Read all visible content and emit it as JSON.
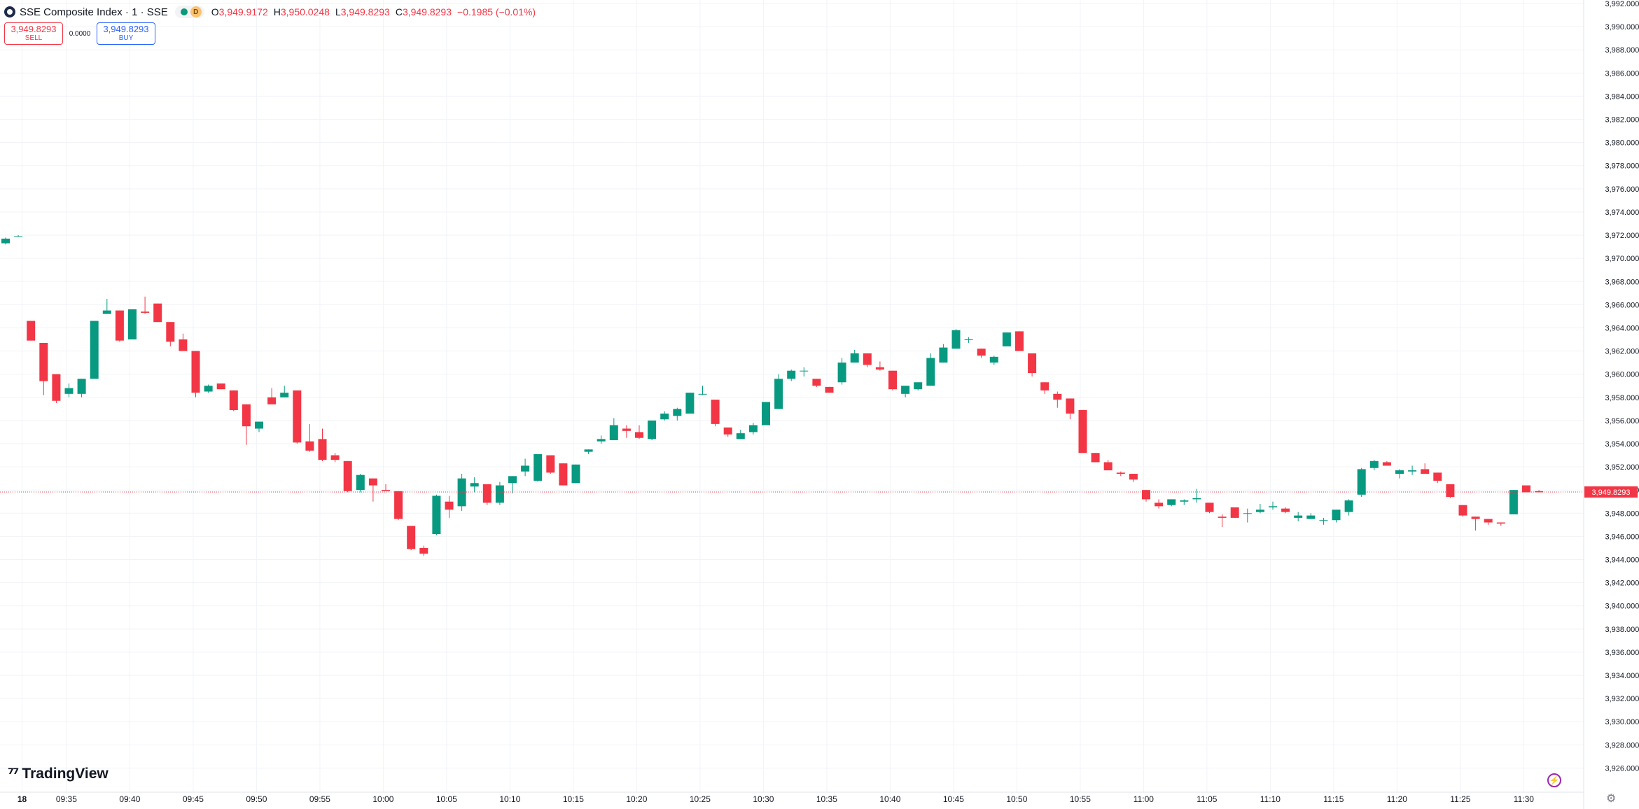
{
  "header": {
    "title": "SSE Composite Index · 1 · SSE",
    "interval_badge": "D",
    "open_key": "O",
    "open": "3,949.9172",
    "high_key": "H",
    "high": "3,950.0248",
    "low_key": "L",
    "low": "3,949.8293",
    "close_key": "C",
    "close": "3,949.8293",
    "change": "−0.1985 (−0.01%)"
  },
  "trade": {
    "sell_price": "3,949.8293",
    "sell_label": "SELL",
    "spread": "0.0000",
    "buy_price": "3,949.8293",
    "buy_label": "BUY"
  },
  "branding": {
    "logo_text": "TradingView"
  },
  "colors": {
    "up": "#089981",
    "down": "#f23645",
    "grid": "#f0f3fa",
    "axis_text": "#131722"
  },
  "icons": [
    "symbol-logo-icon",
    "market-open-icon",
    "tradingview-logo-icon",
    "bolt-icon",
    "gear-icon"
  ],
  "chart_data": {
    "type": "candlestick",
    "y_axis": {
      "min": 3925.0,
      "max": 3992.0,
      "position": "right",
      "ticks": [
        3926,
        3928,
        3930,
        3932,
        3934,
        3936,
        3938,
        3940,
        3942,
        3944,
        3946,
        3948,
        3950,
        3952,
        3954,
        3956,
        3958,
        3960,
        3962,
        3964,
        3966,
        3968,
        3970,
        3972,
        3974,
        3976,
        3978,
        3980,
        3982,
        3984,
        3986,
        3988,
        3990,
        3992
      ],
      "tick_labels": [
        "3,926.0000",
        "3,928.0000",
        "3,930.0000",
        "3,932.0000",
        "3,934.0000",
        "3,936.0000",
        "3,938.0000",
        "3,940.0000",
        "3,942.0000",
        "3,944.0000",
        "3,946.0000",
        "3,948.0000",
        "3,950.0000",
        "3,952.0000",
        "3,954.0000",
        "3,956.0000",
        "3,958.0000",
        "3,960.0000",
        "3,962.0000",
        "3,964.0000",
        "3,966.0000",
        "3,968.0000",
        "3,970.0000",
        "3,972.0000",
        "3,974.0000",
        "3,976.0000",
        "3,978.0000",
        "3,980.0000",
        "3,982.0000",
        "3,984.0000",
        "3,986.0000",
        "3,988.0000",
        "3,990.0000",
        "3,992.0000"
      ]
    },
    "x_axis": {
      "ticks": [
        "18",
        "09:35",
        "09:40",
        "09:45",
        "09:50",
        "09:55",
        "10:00",
        "10:05",
        "10:10",
        "10:15",
        "10:20",
        "10:25",
        "10:30",
        "10:35",
        "10:40",
        "10:45",
        "10:50",
        "10:55",
        "11:00",
        "11:05",
        "11:10",
        "11:15",
        "11:20",
        "11:25",
        "11:30"
      ]
    },
    "last_price": 3949.8293,
    "last_price_label": "3,949.8293",
    "grid": true,
    "candles": [
      [
        3971.3,
        3971.8,
        3971.2,
        3971.7
      ],
      [
        3971.9,
        3972.0,
        3971.9,
        3971.9
      ],
      [
        3964.6,
        3964.6,
        3962.9,
        3962.9
      ],
      [
        3962.7,
        3962.7,
        3958.2,
        3959.4
      ],
      [
        3960.0,
        3960.0,
        3957.5,
        3957.7
      ],
      [
        3958.3,
        3959.2,
        3958.0,
        3958.8
      ],
      [
        3958.3,
        3959.6,
        3958.0,
        3959.6
      ],
      [
        3959.6,
        3964.6,
        3959.6,
        3964.6
      ],
      [
        3965.2,
        3966.5,
        3965.2,
        3965.5
      ],
      [
        3965.5,
        3965.5,
        3962.8,
        3962.9
      ],
      [
        3963.0,
        3965.6,
        3963.0,
        3965.6
      ],
      [
        3965.4,
        3966.7,
        3965.2,
        3965.3
      ],
      [
        3966.1,
        3966.1,
        3964.5,
        3964.5
      ],
      [
        3964.5,
        3964.5,
        3962.4,
        3962.8
      ],
      [
        3963.0,
        3963.5,
        3962.0,
        3962.0
      ],
      [
        3962.0,
        3962.0,
        3958.0,
        3958.4
      ],
      [
        3958.5,
        3959.1,
        3958.4,
        3959.0
      ],
      [
        3959.2,
        3959.2,
        3958.7,
        3958.7
      ],
      [
        3958.6,
        3958.6,
        3956.8,
        3956.9
      ],
      [
        3957.4,
        3957.4,
        3953.9,
        3955.5
      ],
      [
        3955.3,
        3955.9,
        3955.0,
        3955.9
      ],
      [
        3958.0,
        3958.8,
        3957.6,
        3957.4
      ],
      [
        3958.0,
        3959.0,
        3958.0,
        3958.4
      ],
      [
        3958.6,
        3958.6,
        3954.0,
        3954.1
      ],
      [
        3954.2,
        3955.7,
        3953.3,
        3953.4
      ],
      [
        3954.4,
        3955.3,
        3952.5,
        3952.6
      ],
      [
        3953.0,
        3953.2,
        3952.4,
        3952.6
      ],
      [
        3952.5,
        3952.5,
        3949.8,
        3949.9
      ],
      [
        3950.0,
        3951.4,
        3949.8,
        3951.3
      ],
      [
        3951.0,
        3951.0,
        3949.0,
        3950.4
      ],
      [
        3950.0,
        3950.5,
        3950.0,
        3949.9
      ],
      [
        3949.9,
        3949.9,
        3947.4,
        3947.5
      ],
      [
        3946.9,
        3946.9,
        3944.8,
        3944.9
      ],
      [
        3945.0,
        3945.2,
        3944.3,
        3944.5
      ],
      [
        3946.2,
        3949.6,
        3946.1,
        3949.5
      ],
      [
        3949.0,
        3949.5,
        3947.6,
        3948.3
      ],
      [
        3948.6,
        3951.4,
        3948.2,
        3951.0
      ],
      [
        3950.3,
        3951.1,
        3949.8,
        3950.6
      ],
      [
        3950.5,
        3950.5,
        3948.7,
        3948.9
      ],
      [
        3948.9,
        3950.7,
        3948.7,
        3950.4
      ],
      [
        3950.6,
        3951.2,
        3949.7,
        3951.2
      ],
      [
        3951.6,
        3952.7,
        3951.2,
        3952.1
      ],
      [
        3950.8,
        3953.1,
        3950.7,
        3953.1
      ],
      [
        3953.0,
        3953.0,
        3951.4,
        3951.5
      ],
      [
        3952.3,
        3952.3,
        3950.4,
        3950.4
      ],
      [
        3950.6,
        3952.2,
        3950.6,
        3952.2
      ],
      [
        3953.3,
        3953.5,
        3953.1,
        3953.5
      ],
      [
        3954.2,
        3954.7,
        3954.0,
        3954.4
      ],
      [
        3954.3,
        3956.2,
        3954.3,
        3955.6
      ],
      [
        3955.3,
        3955.6,
        3954.5,
        3955.1
      ],
      [
        3955.0,
        3955.6,
        3954.4,
        3954.5
      ],
      [
        3954.4,
        3956.0,
        3954.3,
        3956.0
      ],
      [
        3956.1,
        3956.8,
        3956.0,
        3956.6
      ],
      [
        3956.4,
        3957.1,
        3956.0,
        3957.0
      ],
      [
        3956.6,
        3958.4,
        3956.6,
        3958.4
      ],
      [
        3958.3,
        3959.0,
        3958.2,
        3958.3
      ],
      [
        3957.8,
        3957.8,
        3955.5,
        3955.7
      ],
      [
        3955.4,
        3955.4,
        3954.6,
        3954.8
      ],
      [
        3954.4,
        3955.2,
        3954.4,
        3954.9
      ],
      [
        3955.0,
        3955.8,
        3954.8,
        3955.6
      ],
      [
        3955.6,
        3957.6,
        3955.6,
        3957.6
      ],
      [
        3957.0,
        3960.0,
        3957.0,
        3959.6
      ],
      [
        3959.6,
        3960.4,
        3959.4,
        3960.3
      ],
      [
        3960.3,
        3960.6,
        3959.8,
        3960.3
      ],
      [
        3959.6,
        3959.6,
        3958.9,
        3959.0
      ],
      [
        3958.9,
        3958.9,
        3958.4,
        3958.4
      ],
      [
        3959.3,
        3961.4,
        3959.1,
        3961.0
      ],
      [
        3961.0,
        3962.1,
        3961.0,
        3961.8
      ],
      [
        3961.8,
        3961.8,
        3960.6,
        3960.8
      ],
      [
        3960.6,
        3961.1,
        3960.3,
        3960.4
      ],
      [
        3960.3,
        3960.3,
        3958.6,
        3958.7
      ],
      [
        3958.3,
        3959.0,
        3958.0,
        3959.0
      ],
      [
        3958.7,
        3959.3,
        3958.6,
        3959.3
      ],
      [
        3959.0,
        3961.8,
        3959.0,
        3961.4
      ],
      [
        3961.0,
        3962.6,
        3961.0,
        3962.3
      ],
      [
        3962.2,
        3963.9,
        3962.2,
        3963.8
      ],
      [
        3963.0,
        3963.2,
        3962.7,
        3963.0
      ],
      [
        3962.2,
        3962.2,
        3961.4,
        3961.6
      ],
      [
        3961.0,
        3961.6,
        3960.8,
        3961.5
      ],
      [
        3962.4,
        3963.5,
        3962.4,
        3963.6
      ],
      [
        3963.7,
        3963.7,
        3962.0,
        3962.0
      ],
      [
        3961.8,
        3961.8,
        3959.8,
        3960.1
      ],
      [
        3959.3,
        3959.3,
        3958.3,
        3958.6
      ],
      [
        3958.3,
        3958.5,
        3957.1,
        3957.8
      ],
      [
        3957.9,
        3957.9,
        3956.1,
        3956.6
      ],
      [
        3956.9,
        3956.9,
        3953.2,
        3953.2
      ],
      [
        3953.2,
        3953.2,
        3952.4,
        3952.4
      ],
      [
        3952.4,
        3952.6,
        3951.7,
        3951.7
      ],
      [
        3951.5,
        3951.6,
        3951.2,
        3951.4
      ],
      [
        3951.4,
        3951.4,
        3950.7,
        3950.9
      ],
      [
        3950.0,
        3950.0,
        3949.0,
        3949.2
      ],
      [
        3948.9,
        3949.2,
        3948.4,
        3948.6
      ],
      [
        3948.7,
        3949.2,
        3948.6,
        3949.2
      ],
      [
        3949.0,
        3949.2,
        3948.7,
        3949.1
      ],
      [
        3949.2,
        3950.1,
        3948.9,
        3949.3
      ],
      [
        3948.9,
        3948.9,
        3948.0,
        3948.1
      ],
      [
        3947.7,
        3947.9,
        3946.8,
        3947.6
      ],
      [
        3948.5,
        3948.5,
        3947.6,
        3947.6
      ],
      [
        3948.0,
        3948.4,
        3947.2,
        3948.0
      ],
      [
        3948.1,
        3948.8,
        3948.0,
        3948.3
      ],
      [
        3948.5,
        3949.0,
        3948.3,
        3948.6
      ],
      [
        3948.4,
        3948.5,
        3948.0,
        3948.1
      ],
      [
        3947.6,
        3948.1,
        3947.3,
        3947.8
      ],
      [
        3947.5,
        3948.0,
        3947.5,
        3947.8
      ],
      [
        3947.4,
        3947.6,
        3947.0,
        3947.4
      ],
      [
        3947.4,
        3948.3,
        3947.2,
        3948.3
      ],
      [
        3948.1,
        3949.2,
        3947.8,
        3949.1
      ],
      [
        3949.6,
        3951.9,
        3949.4,
        3951.8
      ],
      [
        3951.9,
        3952.6,
        3951.7,
        3952.5
      ],
      [
        3952.4,
        3952.5,
        3952.1,
        3952.1
      ],
      [
        3951.4,
        3951.8,
        3951.0,
        3951.7
      ],
      [
        3951.6,
        3952.1,
        3951.3,
        3951.7
      ],
      [
        3951.8,
        3952.3,
        3951.6,
        3951.4
      ],
      [
        3951.5,
        3951.5,
        3950.6,
        3950.8
      ],
      [
        3950.5,
        3950.5,
        3949.3,
        3949.4
      ],
      [
        3948.7,
        3948.7,
        3947.7,
        3947.8
      ],
      [
        3947.7,
        3947.7,
        3946.5,
        3947.5
      ],
      [
        3947.5,
        3947.5,
        3947.0,
        3947.2
      ],
      [
        3947.2,
        3947.2,
        3946.9,
        3947.1
      ],
      [
        3947.9,
        3950.0,
        3947.9,
        3950.0
      ],
      [
        3950.4,
        3950.4,
        3949.8,
        3949.8
      ],
      [
        3949.9,
        3950.0,
        3949.8,
        3949.8
      ]
    ]
  }
}
